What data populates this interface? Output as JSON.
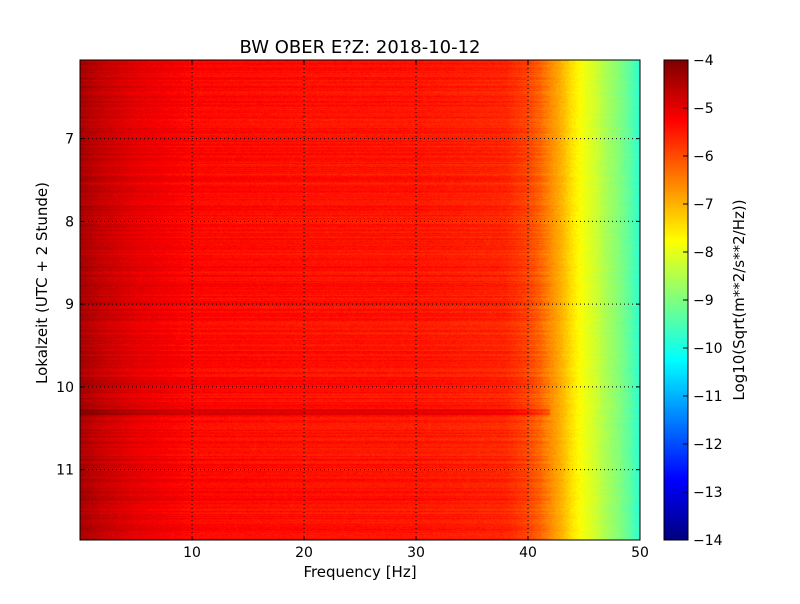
{
  "chart_data": {
    "type": "heatmap",
    "title": "BW OBER E?Z: 2018-10-12",
    "xlabel": "Frequency [Hz]",
    "ylabel": "Lokalzeit (UTC + 2 Stunde)",
    "xlim": [
      0,
      50
    ],
    "ylim": [
      6.05,
      11.85
    ],
    "y_inverted": true,
    "x_ticks": [
      10,
      20,
      30,
      40,
      50
    ],
    "x_tick_labels": [
      "10",
      "20",
      "30",
      "40",
      "50"
    ],
    "y_ticks": [
      7,
      8,
      9,
      10,
      11
    ],
    "y_tick_labels": [
      "7",
      "8",
      "9",
      "10",
      "11"
    ],
    "grid": true,
    "colormap": "jet",
    "colorbar": {
      "label": "Log10(Sqrt(m**2/s**2/Hz))",
      "range": [
        -14,
        -4
      ],
      "ticks": [
        -4,
        -5,
        -6,
        -7,
        -8,
        -9,
        -10,
        -11,
        -12,
        -13,
        -14
      ],
      "tick_labels": [
        "−4",
        "−5",
        "−6",
        "−7",
        "−8",
        "−9",
        "−10",
        "−11",
        "−12",
        "−13",
        "−14"
      ]
    },
    "spectrum_profile": {
      "frequency_hz": [
        0,
        2,
        5,
        10,
        20,
        30,
        38,
        40,
        41,
        42,
        43,
        44,
        45,
        46,
        47,
        48,
        49,
        50
      ],
      "log10_amplitude": [
        -4.4,
        -4.7,
        -5.0,
        -5.3,
        -5.4,
        -5.45,
        -5.6,
        -5.9,
        -6.2,
        -6.6,
        -7.0,
        -7.5,
        -7.9,
        -8.2,
        -8.6,
        -8.9,
        -9.3,
        -9.8
      ]
    },
    "strong_band": {
      "time_h": 10.3,
      "log10_amplitude_offset": 0.5
    }
  }
}
